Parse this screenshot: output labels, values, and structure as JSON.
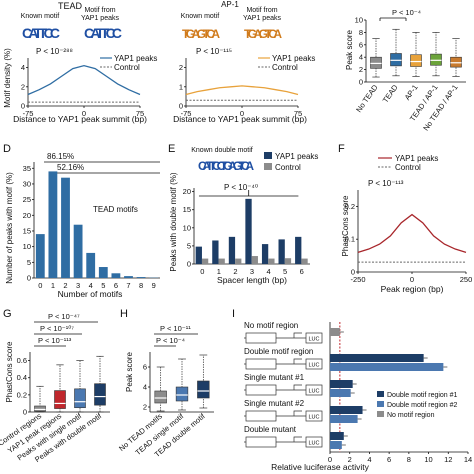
{
  "panels": {
    "A": {
      "letter": "",
      "title": "TEAD",
      "logo_left_label": "Known motif",
      "logo_right_label": "Motif from YAP1 peaks",
      "logo_left_text": "CATTCC",
      "logo_right_text": "CATTCC",
      "pvalue": "P < 10⁻²⁸⁸",
      "legend": [
        "YAP1 peaks",
        "Control"
      ],
      "ylabel": "Motif density (%)",
      "xlabel": "Distance to YAP1 peak summit (bp)",
      "yticks": [
        "0",
        "2",
        "4"
      ],
      "xticks": [
        "-75",
        "0",
        "75"
      ]
    },
    "B": {
      "title": "AP-1",
      "logo_left_label": "Known motif",
      "logo_right_label": "Motif from YAP1 peaks",
      "logo_left_text": "TGAGTCA",
      "logo_right_text": "TGAGTCA",
      "pvalue": "P < 10⁻¹¹⁵",
      "legend": [
        "YAP1 peaks",
        "Control"
      ],
      "xlabel": "Distance to YAP1 peak summit (bp)",
      "yticks": [
        "0",
        "1",
        "2"
      ],
      "xticks": [
        "-75",
        "0",
        "75"
      ]
    },
    "C": {
      "pvalue": "P < 10⁻⁴",
      "ylabel": "Peak score",
      "yticks": [
        "0",
        "2",
        "4",
        "6",
        "8",
        "10"
      ],
      "categories": [
        "No TEAD",
        "TEAD",
        "AP-1",
        "TEAD / AP-1",
        "No TEAD / AP-1"
      ],
      "colors": [
        "#8c8c8c",
        "#2f6da3",
        "#e8a23b",
        "#6ba33a",
        "#c87a2e"
      ]
    },
    "D": {
      "letter": "D",
      "pct1": "86.15%",
      "pct2": "52.16%",
      "label": "TEAD motifs",
      "ylabel": "Number of peaks with motif (%)",
      "xlabel": "Number of motifs",
      "yticks": [
        "0",
        "5",
        "10",
        "15",
        "20",
        "25",
        "30",
        "35"
      ],
      "xticks": [
        "0",
        "1",
        "2",
        "3",
        "4",
        "5",
        "6",
        "7",
        "8",
        "9"
      ]
    },
    "E": {
      "letter": "E",
      "known_label": "Known double motif",
      "logo_text": "CATTCC TGAGTCA",
      "pvalue": "P < 10⁻⁴⁰",
      "legend": [
        "YAP1 peaks",
        "Control"
      ],
      "ylabel": "Peaks with double motif (%)",
      "xlabel": "Spacer length (bp)",
      "yticks": [
        "0",
        "5",
        "10",
        "15",
        "20"
      ],
      "xticks": [
        "0",
        "1",
        "2",
        "3",
        "4",
        "5",
        "6"
      ]
    },
    "F": {
      "letter": "F",
      "legend": [
        "YAP1 peaks",
        "Control"
      ],
      "pvalue": "P < 10⁻¹¹³",
      "ylabel": "PhastCons score",
      "xlabel": "Peak region (bp)",
      "yticks": [
        "0",
        "0.1",
        "0.2"
      ],
      "xticks": [
        "-250",
        "0",
        "250"
      ]
    },
    "G": {
      "letter": "G",
      "pvalues": [
        "P < 10⁻⁴⁷",
        "P < 10⁻¹⁰⁷",
        "P < 10⁻¹¹³"
      ],
      "ylabel": "PhastCons score",
      "yticks": [
        "0",
        "0.2",
        "0.4",
        "0.6"
      ],
      "categories": [
        "Control regions",
        "YAP1 peak regions",
        "Peaks with single motif",
        "Peaks with double motif"
      ],
      "colors": [
        "#8c8c8c",
        "#c0272d",
        "#4b78b0",
        "#1d3d66"
      ]
    },
    "H": {
      "letter": "H",
      "pvalues": [
        "P < 10⁻¹¹",
        "P < 10⁻⁴"
      ],
      "ylabel": "Peak score",
      "yticks": [
        "2",
        "4",
        "6"
      ],
      "categories": [
        "No TEAD motifs",
        "TEAD single motif",
        "TEAD double motif"
      ],
      "colors": [
        "#8c8c8c",
        "#4b78b0",
        "#1d3d66"
      ]
    },
    "I": {
      "letter": "I",
      "rows": [
        "No motif region",
        "Double motif region",
        "Single mutant #1",
        "Single mutant #2",
        "Double mutant"
      ],
      "luc": "LUC",
      "legend": [
        "Double motif region #1",
        "Double motif region #2",
        "No motif region"
      ],
      "xlabel": "Relative luciferase activity",
      "xticks": [
        "0",
        "2",
        "4",
        "6",
        "8",
        "10",
        "12",
        "14"
      ]
    }
  },
  "chart_data": [
    {
      "panel": "A",
      "type": "line",
      "x": [
        -75,
        -60,
        -45,
        -30,
        -15,
        0,
        15,
        30,
        45,
        60,
        75
      ],
      "series": [
        {
          "name": "YAP1 peaks",
          "values": [
            1.2,
            1.7,
            2.3,
            3.1,
            3.9,
            4.2,
            3.9,
            3.1,
            2.3,
            1.7,
            1.2
          ]
        },
        {
          "name": "Control",
          "values": [
            0.4,
            0.4,
            0.4,
            0.4,
            0.4,
            0.4,
            0.4,
            0.4,
            0.4,
            0.4,
            0.4
          ]
        }
      ],
      "xlabel": "Distance to YAP1 peak summit (bp)",
      "ylabel": "Motif density (%)",
      "ylim": [
        0,
        5
      ]
    },
    {
      "panel": "B",
      "type": "line",
      "x": [
        -75,
        -60,
        -45,
        -30,
        -15,
        0,
        15,
        30,
        45,
        60,
        75
      ],
      "series": [
        {
          "name": "YAP1 peaks",
          "values": [
            0.6,
            0.75,
            0.85,
            0.95,
            1.0,
            1.05,
            1.0,
            0.95,
            0.85,
            0.75,
            0.6
          ]
        },
        {
          "name": "Control",
          "values": [
            0.3,
            0.3,
            0.3,
            0.3,
            0.3,
            0.3,
            0.3,
            0.3,
            0.3,
            0.3,
            0.3
          ]
        }
      ],
      "xlabel": "Distance to YAP1 peak summit (bp)",
      "ylim": [
        0,
        2.5
      ]
    },
    {
      "panel": "C",
      "type": "box",
      "categories": [
        "No TEAD",
        "TEAD",
        "AP-1",
        "TEAD / AP-1",
        "No TEAD / AP-1"
      ],
      "boxes": [
        [
          0.8,
          2.2,
          3.0,
          4.0,
          7.0
        ],
        [
          1.0,
          2.6,
          3.5,
          4.6,
          8.5
        ],
        [
          0.9,
          2.5,
          3.3,
          4.4,
          8.0
        ],
        [
          1.0,
          2.7,
          3.5,
          4.5,
          8.0
        ],
        [
          0.9,
          2.4,
          3.1,
          4.0,
          7.0
        ]
      ],
      "ylabel": "Peak score",
      "ylim": [
        0,
        10
      ]
    },
    {
      "panel": "D",
      "type": "bar",
      "categories": [
        "0",
        "1",
        "2",
        "3",
        "4",
        "5",
        "6",
        "7",
        "8",
        "9"
      ],
      "values": [
        14,
        34,
        32,
        17,
        8,
        3.5,
        1.5,
        0.6,
        0.3,
        0.1
      ],
      "xlabel": "Number of motifs",
      "ylabel": "Number of peaks with motif (%)",
      "ylim": [
        0,
        37
      ]
    },
    {
      "panel": "E",
      "type": "bar",
      "categories": [
        "0",
        "1",
        "2",
        "3",
        "4",
        "5",
        "6"
      ],
      "series": [
        {
          "name": "YAP1 peaks",
          "values": [
            4.8,
            6.5,
            7.5,
            18.0,
            5.5,
            6.8,
            7.5
          ]
        },
        {
          "name": "Control",
          "values": [
            1.5,
            1.5,
            1.5,
            2.2,
            1.5,
            1.6,
            1.5
          ]
        }
      ],
      "xlabel": "Spacer length (bp)",
      "ylabel": "Peaks with double motif (%)",
      "ylim": [
        0,
        21
      ]
    },
    {
      "panel": "F",
      "type": "line",
      "x": [
        -250,
        -200,
        -150,
        -100,
        -50,
        0,
        50,
        100,
        150,
        200,
        250
      ],
      "series": [
        {
          "name": "YAP1 peaks",
          "values": [
            0.06,
            0.07,
            0.085,
            0.11,
            0.15,
            0.175,
            0.15,
            0.11,
            0.085,
            0.07,
            0.06
          ]
        },
        {
          "name": "Control",
          "values": [
            0.03,
            0.03,
            0.03,
            0.03,
            0.03,
            0.03,
            0.03,
            0.03,
            0.03,
            0.03,
            0.03
          ]
        }
      ],
      "xlabel": "Peak region (bp)",
      "ylabel": "PhastCons score",
      "ylim": [
        0,
        0.25
      ]
    },
    {
      "panel": "G",
      "type": "box",
      "categories": [
        "Control regions",
        "YAP1 peak regions",
        "Peaks with single motif",
        "Peaks with double motif"
      ],
      "boxes": [
        [
          0.0,
          0.01,
          0.03,
          0.07,
          0.3
        ],
        [
          0.0,
          0.04,
          0.1,
          0.25,
          0.55
        ],
        [
          0.0,
          0.05,
          0.12,
          0.27,
          0.6
        ],
        [
          0.0,
          0.08,
          0.18,
          0.33,
          0.65
        ]
      ],
      "ylabel": "PhastCons score",
      "ylim": [
        0,
        0.7
      ]
    },
    {
      "panel": "H",
      "type": "box",
      "categories": [
        "No TEAD motifs",
        "TEAD single motif",
        "TEAD double motif"
      ],
      "boxes": [
        [
          1.6,
          2.4,
          2.9,
          3.6,
          6.0
        ],
        [
          1.7,
          2.6,
          3.2,
          4.0,
          6.8
        ],
        [
          1.9,
          2.9,
          3.6,
          4.6,
          7.2
        ]
      ],
      "ylabel": "Peak score",
      "ylim": [
        1.5,
        7.5
      ]
    },
    {
      "panel": "I",
      "type": "bar",
      "orientation": "horizontal",
      "categories": [
        "No motif region",
        "Double motif region",
        "Single mutant #1",
        "Single mutant #2",
        "Double mutant"
      ],
      "series": [
        {
          "name": "Double motif region #1",
          "values": [
            0.0,
            9.5,
            2.3,
            3.3,
            1.4
          ]
        },
        {
          "name": "Double motif region #2",
          "values": [
            0.0,
            11.5,
            2.1,
            2.8,
            1.2
          ]
        },
        {
          "name": "No motif region",
          "values": [
            1.0,
            0.0,
            0.0,
            0.0,
            0.0
          ]
        }
      ],
      "xlabel": "Relative luciferase activity",
      "xlim": [
        0,
        14
      ]
    }
  ]
}
